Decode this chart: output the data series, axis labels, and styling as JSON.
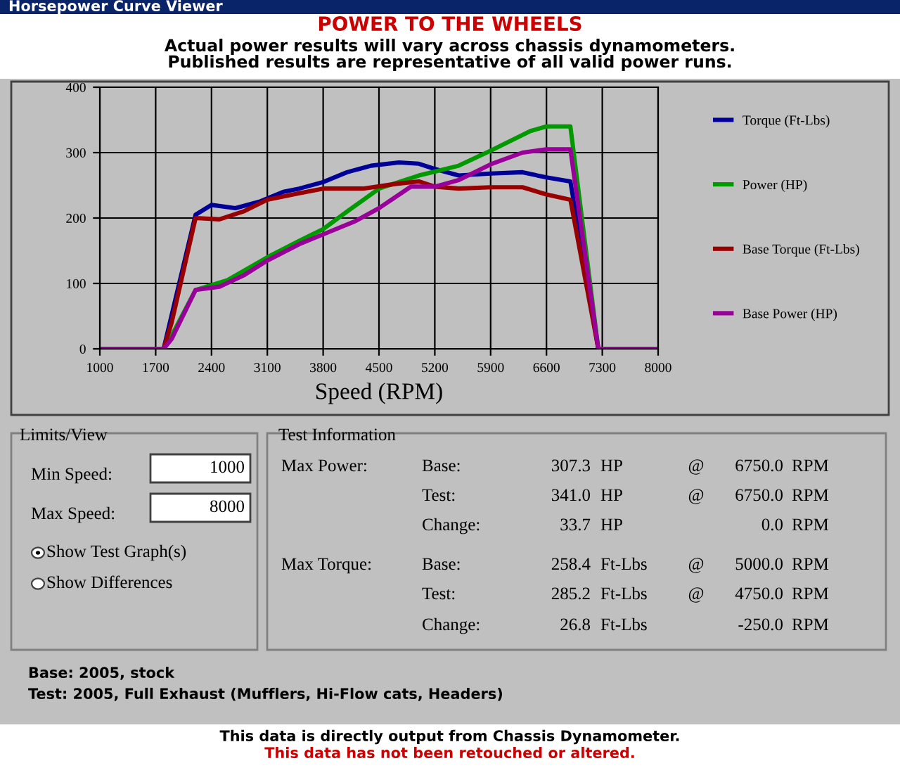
{
  "chart_data": {
    "type": "line",
    "title": "POWER TO THE WHEELS",
    "subtitle": "Actual power results will vary across chassis dynamometers.\nPublished results are representative of all valid power runs.",
    "xlabel": "Speed (RPM)",
    "xlim": [
      1000,
      8000
    ],
    "xticks": [
      1000,
      1700,
      2400,
      3100,
      3800,
      4500,
      5200,
      5900,
      6600,
      7300,
      8000
    ],
    "ylim": [
      0,
      400
    ],
    "yticks": [
      0,
      100,
      200,
      300,
      400
    ],
    "grid": true,
    "legend": "right",
    "marker": "none",
    "line_style": "solid",
    "series": [
      {
        "name": "Torque (Ft-Lbs)",
        "color": "#000099",
        "x": [
          1000,
          1800,
          2200,
          2400,
          2700,
          3000,
          3300,
          3500,
          3800,
          4100,
          4400,
          4750,
          5000,
          5200,
          5500,
          5900,
          6300,
          6600,
          6900,
          7250,
          8000
        ],
        "values": [
          0,
          0,
          205,
          220,
          215,
          225,
          240,
          245,
          255,
          270,
          280,
          285,
          283,
          275,
          265,
          268,
          270,
          262,
          256,
          0,
          0
        ]
      },
      {
        "name": "Power (HP)",
        "color": "#009900",
        "x": [
          1000,
          1800,
          1900,
          2200,
          2600,
          3100,
          3500,
          3800,
          4100,
          4500,
          5000,
          5200,
          5500,
          5900,
          6400,
          6600,
          6900,
          7250,
          8000
        ],
        "values": [
          0,
          0,
          20,
          90,
          105,
          140,
          165,
          183,
          210,
          245,
          265,
          271,
          280,
          303,
          333,
          340,
          340,
          0,
          0
        ]
      },
      {
        "name": "Base Torque (Ft-Lbs)",
        "color": "#990000",
        "x": [
          1000,
          1800,
          1900,
          2200,
          2500,
          2800,
          3100,
          3500,
          3800,
          4300,
          4700,
          5000,
          5200,
          5500,
          5900,
          6300,
          6600,
          6900,
          7250,
          8000
        ],
        "values": [
          0,
          0,
          40,
          200,
          198,
          210,
          228,
          238,
          245,
          245,
          252,
          256,
          248,
          245,
          247,
          247,
          236,
          228,
          0,
          0
        ]
      },
      {
        "name": "Base Power (HP)",
        "color": "#990099",
        "x": [
          1000,
          1800,
          1900,
          2200,
          2500,
          2800,
          3100,
          3500,
          3800,
          4200,
          4500,
          4900,
          5200,
          5500,
          5900,
          6300,
          6600,
          6900,
          7250,
          8000
        ],
        "values": [
          0,
          0,
          15,
          90,
          95,
          112,
          135,
          160,
          175,
          195,
          215,
          248,
          248,
          258,
          282,
          300,
          305,
          305,
          0,
          0
        ]
      }
    ],
    "annotations": [
      "Horsepower Curve Viewer",
      "Limits/View",
      "Min Speed:",
      "1000",
      "Max Speed:",
      "8000",
      "Show Test Graph(s)",
      "Show Differences",
      "Test Information",
      "Max Power:",
      "Base:",
      "307.3",
      "HP",
      "@",
      "6750.0",
      "RPM",
      "Test:",
      "341.0",
      "HP",
      "@",
      "6750.0",
      "RPM",
      "Change:",
      "33.7",
      "HP",
      "0.0",
      "RPM",
      "Max Torque:",
      "Base:",
      "258.4",
      "Ft-Lbs",
      "@",
      "5000.0",
      "RPM",
      "Test:",
      "285.2",
      "Ft-Lbs",
      "@",
      "4750.0",
      "RPM",
      "Change:",
      "26.8",
      "Ft-Lbs",
      "-250.0",
      "RPM",
      "Base: 2005, stock",
      "Test: 2005, Full Exhaust (Mufflers, Hi-Flow cats, Headers)",
      "This data is directly output from Chassis Dynamometer.",
      "This data has not been retouched or altered."
    ]
  }
}
